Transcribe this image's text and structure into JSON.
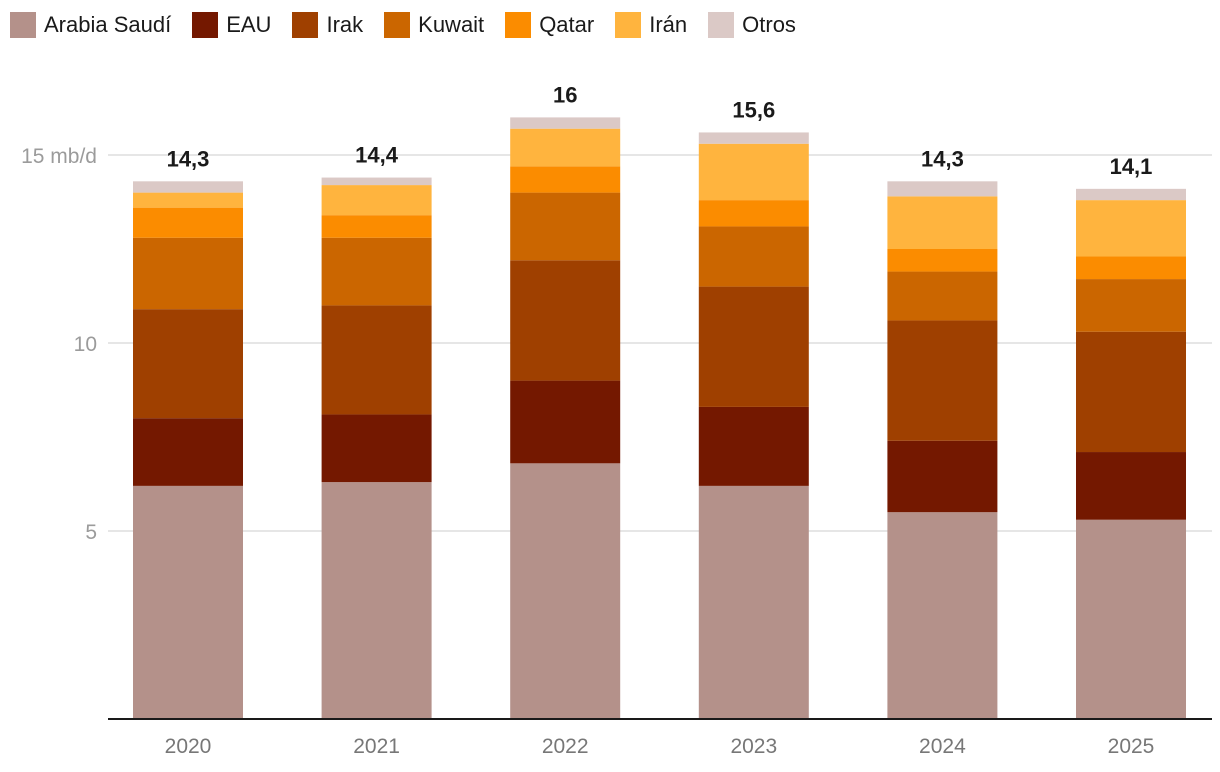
{
  "chart_data": {
    "type": "bar",
    "stacked": true,
    "title": "",
    "xlabel": "",
    "ylabel": "",
    "ylim": [
      0,
      16.5
    ],
    "yticks": [
      {
        "value": 5,
        "label": "5"
      },
      {
        "value": 10,
        "label": "10"
      },
      {
        "value": 15,
        "label": "15 mb/d"
      }
    ],
    "grid": true,
    "legend_position": "top-left",
    "categories": [
      "2020",
      "2021",
      "2022",
      "2023",
      "2024",
      "2025"
    ],
    "totals": [
      "14,3",
      "14,4",
      "16",
      "15,6",
      "14,3",
      "14,1"
    ],
    "series": [
      {
        "name": "Arabia Saudí",
        "color": "#b4918a",
        "values": [
          6.2,
          6.3,
          6.8,
          6.2,
          5.5,
          5.3
        ]
      },
      {
        "name": "EAU",
        "color": "#741800",
        "values": [
          1.8,
          1.8,
          2.2,
          2.1,
          1.9,
          1.8
        ]
      },
      {
        "name": "Irak",
        "color": "#9f4000",
        "values": [
          2.9,
          2.9,
          3.2,
          3.2,
          3.2,
          3.2
        ]
      },
      {
        "name": "Kuwait",
        "color": "#cb6600",
        "values": [
          1.9,
          1.8,
          1.8,
          1.6,
          1.3,
          1.4
        ]
      },
      {
        "name": "Qatar",
        "color": "#fb8c00",
        "values": [
          0.8,
          0.6,
          0.7,
          0.7,
          0.6,
          0.6
        ]
      },
      {
        "name": "Irán",
        "color": "#ffb43e",
        "values": [
          0.4,
          0.8,
          1.0,
          1.5,
          1.4,
          1.5
        ]
      },
      {
        "name": "Otros",
        "color": "#dbc9c6",
        "values": [
          0.3,
          0.2,
          0.3,
          0.3,
          0.4,
          0.3
        ]
      }
    ]
  }
}
